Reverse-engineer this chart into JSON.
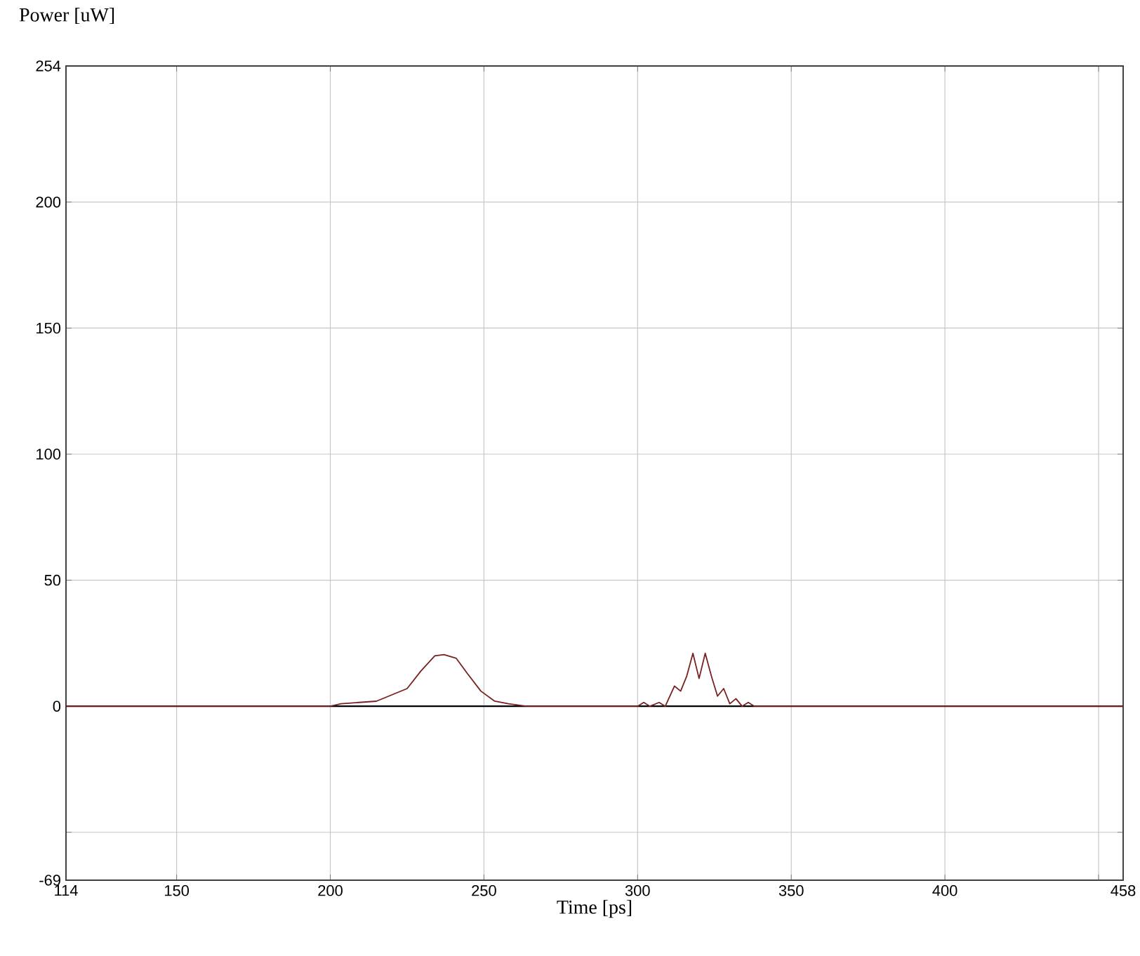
{
  "chart_data": {
    "type": "line",
    "xlabel": "Time [ps]",
    "ylabel": "Power [uW]",
    "xlim": [
      114,
      458
    ],
    "ylim": [
      -69,
      254
    ],
    "xticks": [
      114,
      150,
      200,
      250,
      300,
      350,
      400,
      {
        "value": 450,
        "label": null
      },
      458
    ],
    "yticks": [
      -69,
      {
        "value": -50,
        "label": null
      },
      0,
      50,
      100,
      150,
      200,
      254
    ],
    "grid": true,
    "marker": "none",
    "line_style": "solid",
    "ref_lines": [
      {
        "axis": "y",
        "value": 0,
        "color": "#000000"
      }
    ],
    "series": [
      {
        "color": "#7a2020",
        "x": [
          114,
          200,
          203.5,
          215,
          225,
          229.5,
          234,
          237,
          241,
          244.6,
          249,
          253.5,
          258,
          263.8,
          300,
          302,
          304,
          307,
          309,
          312,
          314,
          316,
          318,
          320,
          322,
          324,
          326,
          328,
          330,
          332,
          334,
          336,
          338,
          458
        ],
        "values": [
          0,
          0,
          1,
          2,
          7,
          14,
          20,
          20.5,
          19,
          13,
          6,
          2,
          1,
          0,
          0,
          1.5,
          0,
          1.5,
          0,
          8,
          6,
          12,
          21,
          11,
          21,
          12,
          4,
          7,
          1,
          3,
          0,
          1.5,
          0,
          0
        ]
      }
    ]
  }
}
